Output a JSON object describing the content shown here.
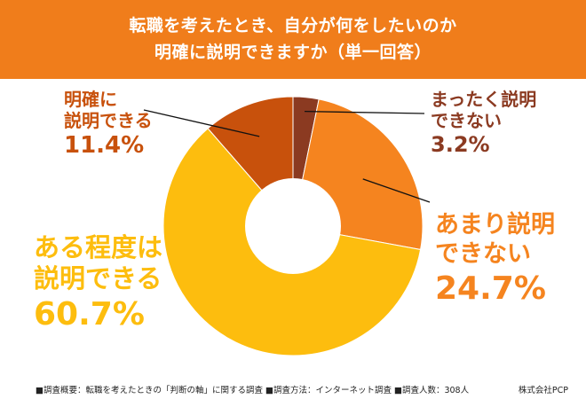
{
  "header": {
    "title_line1": "転職を考えたとき、自分が何をしたいのか",
    "title_line2": "明確に説明できますか（単一回答）",
    "bg_color": "#f07d1b"
  },
  "chart_data": {
    "type": "pie",
    "variant": "donut",
    "start": "12 o'clock",
    "direction": "clockwise",
    "slices": [
      {
        "label_line1": "まったく説明",
        "label_line2": "できない",
        "value": 3.2,
        "value_text": "3.2%",
        "color": "#8b3a21"
      },
      {
        "label_line1": "あまり説明",
        "label_line2": "できない",
        "value": 24.7,
        "value_text": "24.7%",
        "color": "#f5841f"
      },
      {
        "label_line1": "ある程度は",
        "label_line2": "説明できる",
        "value": 60.7,
        "value_text": "60.7%",
        "color": "#fdbd0e"
      },
      {
        "label_line1": "明確に",
        "label_line2": "説明できる",
        "value": 11.4,
        "value_text": "11.4%",
        "color": "#c8510c"
      }
    ]
  },
  "footer": {
    "text": "■調査概要：転職を考えたときの「判断の軸」に関する調査 ■調査方法：インターネット調査 ■調査人数：308人",
    "company": "株式会社PCP"
  }
}
